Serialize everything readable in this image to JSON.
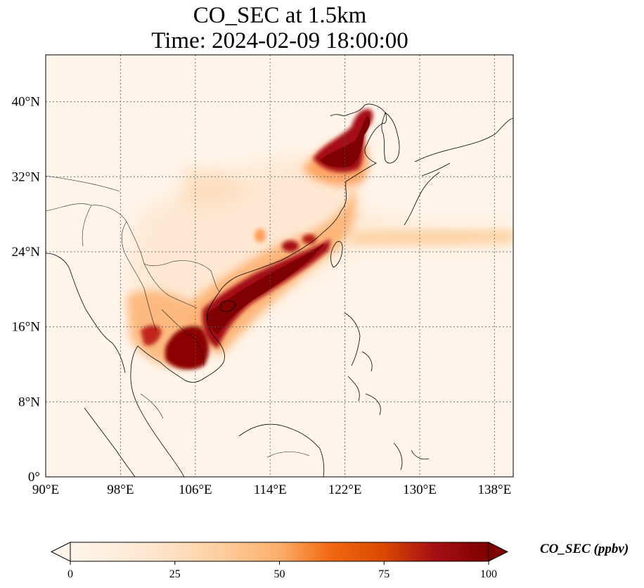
{
  "title_line1": "CO_SEC at 1.5km",
  "title_line2": "Time: 2024-02-09 18:00:00",
  "map": {
    "lon_range": [
      90,
      140
    ],
    "lat_range": [
      0,
      45
    ],
    "lon_ticks": [
      "90°E",
      "98°E",
      "106°E",
      "114°E",
      "122°E",
      "130°E",
      "138°E"
    ],
    "lat_ticks": [
      "0°",
      "8°N",
      "16°N",
      "24°N",
      "32°N",
      "40°N"
    ],
    "gridlines": "dotted",
    "colormap": [
      "#fff5eb",
      "#fdd0a2",
      "#fd8d3c",
      "#d94801",
      "#a50f15",
      "#7f0000"
    ]
  },
  "colorbar": {
    "label": "CO_SEC (ppbv)",
    "ticks": [
      "0",
      "25",
      "50",
      "75",
      "100"
    ],
    "range": [
      0,
      100
    ],
    "extend": "both"
  }
}
